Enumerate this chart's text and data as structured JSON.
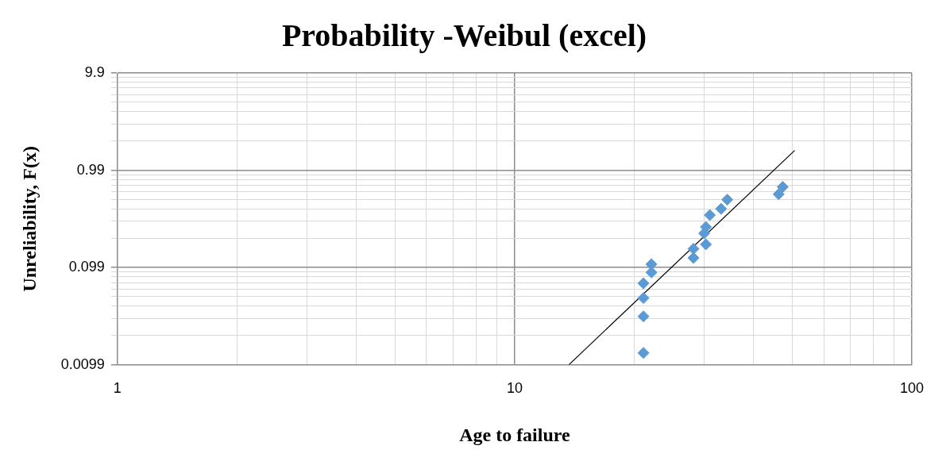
{
  "chart_data": {
    "type": "scatter",
    "title": "Probability -Weibul (excel)",
    "xlabel": "Age to failure",
    "ylabel": "Unreliability, F(x)",
    "log": "xy",
    "grid": true,
    "legend": false,
    "marker": "diamond",
    "xlim": [
      1,
      100
    ],
    "ylim": [
      0.0099,
      9.9
    ],
    "xticks": [
      1,
      {
        "value": 2,
        "label": null
      },
      {
        "value": 3,
        "label": null
      },
      {
        "value": 4,
        "label": null
      },
      {
        "value": 5,
        "label": null
      },
      {
        "value": 6,
        "label": null
      },
      {
        "value": 7,
        "label": null
      },
      {
        "value": 8,
        "label": null
      },
      {
        "value": 9,
        "label": null
      },
      10,
      {
        "value": 20,
        "label": null
      },
      {
        "value": 30,
        "label": null
      },
      {
        "value": 40,
        "label": null
      },
      {
        "value": 50,
        "label": null
      },
      {
        "value": 60,
        "label": null
      },
      {
        "value": 70,
        "label": null
      },
      {
        "value": 80,
        "label": null
      },
      {
        "value": 90,
        "label": null
      },
      100
    ],
    "yticks": [
      0.0099,
      {
        "value": 0.0198,
        "label": null
      },
      {
        "value": 0.0297,
        "label": null
      },
      {
        "value": 0.0396,
        "label": null
      },
      {
        "value": 0.0495,
        "label": null
      },
      {
        "value": 0.0594,
        "label": null
      },
      {
        "value": 0.0693,
        "label": null
      },
      {
        "value": 0.0792,
        "label": null
      },
      {
        "value": 0.0891,
        "label": null
      },
      0.099,
      {
        "value": 0.198,
        "label": null
      },
      {
        "value": 0.297,
        "label": null
      },
      {
        "value": 0.396,
        "label": null
      },
      {
        "value": 0.495,
        "label": null
      },
      {
        "value": 0.594,
        "label": null
      },
      {
        "value": 0.693,
        "label": null
      },
      {
        "value": 0.792,
        "label": null
      },
      {
        "value": 0.891,
        "label": null
      },
      0.99,
      {
        "value": 1.98,
        "label": null
      },
      {
        "value": 2.97,
        "label": null
      },
      {
        "value": 3.96,
        "label": null
      },
      {
        "value": 4.95,
        "label": null
      },
      {
        "value": 5.94,
        "label": null
      },
      {
        "value": 6.93,
        "label": null
      },
      {
        "value": 7.92,
        "label": null
      },
      {
        "value": 8.91,
        "label": null
      },
      9.9
    ],
    "series": [
      {
        "color": "#5b9bd5",
        "x": [
          21.1,
          21.1,
          21.1,
          21.1,
          22.1,
          22.1,
          28.2,
          28.2,
          30.3,
          30.0,
          30.3,
          31.0,
          33.1,
          34.3,
          46.2,
          47.3
        ],
        "values": [
          0.0131,
          0.0311,
          0.048,
          0.068,
          0.088,
          0.107,
          0.124,
          0.154,
          0.171,
          0.222,
          0.258,
          0.342,
          0.397,
          0.493,
          0.561,
          0.667
        ]
      },
      {
        "type": "line",
        "color": "#000000",
        "marker": "none",
        "line_style": "solid",
        "x": [
          13.7,
          50.7
        ],
        "values": [
          0.0099,
          1.58
        ]
      }
    ]
  }
}
